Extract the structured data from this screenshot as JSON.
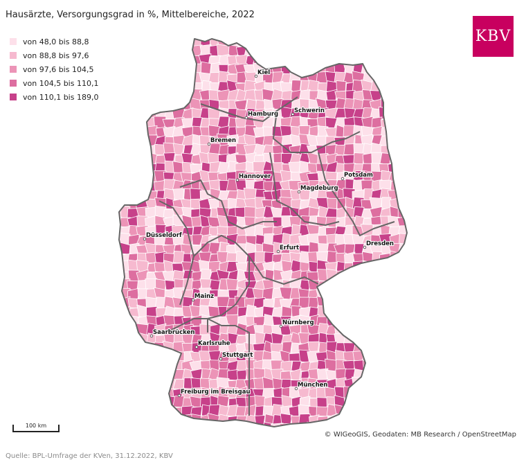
{
  "title": "Hausärzte, Versorgungsgrad in %, Mittelbereiche, 2022",
  "legend": [
    {
      "label": "von 48,0 bis 88,8",
      "color": "#fde0ea"
    },
    {
      "label": "von 88,8 bis 97,6",
      "color": "#f6b9cf"
    },
    {
      "label": "von 97,6 bis 104,5",
      "color": "#ec94b7"
    },
    {
      "label": "von 104,5 bis 110,1",
      "color": "#dd6ea0"
    },
    {
      "label": "von 110,1 bis 189,0",
      "color": "#c7418a"
    }
  ],
  "logo": {
    "text": "KBV",
    "color": "#c8005f"
  },
  "cities": [
    "Kiel",
    "Hamburg",
    "Schwerin",
    "Bremen",
    "Hannover",
    "Potsdam",
    "Magdeburg",
    "Düsseldorf",
    "Erfurt",
    "Dresden",
    "Mainz",
    "Nürnberg",
    "Saarbrücken",
    "Karlsruhe",
    "Stuttgart",
    "München",
    "Freiburg im Breisgau"
  ],
  "scale": {
    "label": "100 km"
  },
  "copyright": "© WIGeoGIS, Geodaten: MB Research / OpenStreetMap",
  "source": "Quelle: BPL-Umfrage der KVen, 31.12.2022, KBV"
}
